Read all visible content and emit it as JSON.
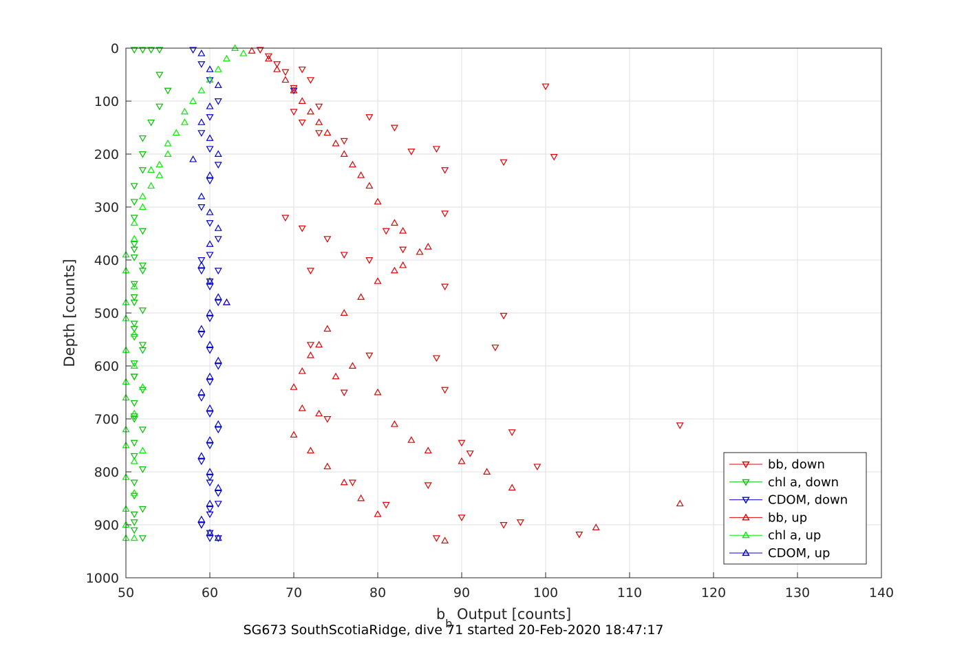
{
  "chart_data": {
    "type": "scatter",
    "xlabel_main": "b",
    "xlabel_sub": "b",
    "xlabel_rest": " Output [counts]",
    "ylabel": "Depth [counts]",
    "caption": "SG673 SouthScotiaRidge, dive 71 started 20-Feb-2020 18:47:17",
    "xlim": [
      50,
      140
    ],
    "ylim": [
      1000,
      0
    ],
    "y_reversed": true,
    "x_ticks": [
      "50",
      "60",
      "70",
      "80",
      "90",
      "100",
      "110",
      "120",
      "130",
      "140"
    ],
    "y_ticks": [
      "0",
      "100",
      "200",
      "300",
      "400",
      "500",
      "600",
      "700",
      "800",
      "900",
      "1000"
    ],
    "grid": true,
    "legend_position": "bottom-right",
    "series": [
      {
        "name": "bb, down",
        "color": "#e00000",
        "marker": "triangle-down",
        "x": [
          66,
          67,
          68,
          69,
          71,
          72,
          70,
          100,
          73,
          82,
          79,
          87,
          95,
          101,
          88,
          84,
          76,
          73,
          71,
          70,
          69,
          71,
          88,
          74,
          72,
          81,
          76,
          79,
          83,
          88,
          95,
          94,
          87,
          88,
          79,
          76,
          72,
          96,
          90,
          91,
          86,
          99,
          116,
          97,
          95,
          90,
          104,
          87,
          81,
          77,
          74
        ],
        "y": [
          3,
          15,
          30,
          45,
          40,
          60,
          75,
          72,
          110,
          150,
          130,
          190,
          215,
          205,
          230,
          195,
          175,
          160,
          140,
          120,
          320,
          340,
          312,
          360,
          420,
          345,
          390,
          400,
          380,
          450,
          505,
          565,
          585,
          645,
          580,
          650,
          560,
          725,
          745,
          765,
          825,
          790,
          712,
          895,
          900,
          886,
          918,
          925,
          862,
          820,
          700
        ]
      },
      {
        "name": "chl a, down",
        "color": "#00c000",
        "marker": "triangle-down",
        "x": [
          51,
          52,
          53,
          54,
          54,
          55,
          54,
          53,
          52,
          52,
          52,
          51,
          51,
          51,
          52,
          51,
          51,
          52,
          51,
          51,
          52,
          51,
          51,
          52,
          51,
          51,
          52,
          51,
          51,
          52,
          51,
          51,
          52,
          51,
          51,
          52,
          51,
          51,
          52,
          51,
          52,
          51,
          51,
          52,
          51,
          51,
          51
        ],
        "y": [
          3,
          3,
          3,
          3,
          50,
          80,
          110,
          140,
          170,
          200,
          230,
          260,
          290,
          320,
          345,
          370,
          395,
          420,
          445,
          470,
          495,
          520,
          545,
          570,
          595,
          620,
          645,
          670,
          695,
          720,
          745,
          770,
          795,
          820,
          845,
          870,
          895,
          910,
          925,
          380,
          410,
          480,
          530,
          560,
          620,
          700,
          880
        ]
      },
      {
        "name": "CDOM, down",
        "color": "#0000d0",
        "marker": "triangle-down",
        "x": [
          58,
          59,
          60,
          61,
          60,
          59,
          60,
          61,
          60,
          59,
          60,
          61,
          60,
          59,
          60,
          61,
          60,
          59,
          60,
          61,
          60,
          59,
          60,
          61,
          60,
          59,
          60,
          61,
          60,
          59,
          60,
          61,
          60,
          59,
          60,
          61,
          60,
          59,
          61,
          60,
          70
        ],
        "y": [
          3,
          30,
          60,
          100,
          130,
          160,
          190,
          220,
          250,
          300,
          330,
          360,
          390,
          420,
          450,
          480,
          510,
          540,
          570,
          600,
          630,
          660,
          690,
          720,
          750,
          780,
          810,
          840,
          870,
          900,
          925,
          925,
          915,
          900,
          880,
          860,
          820,
          400,
          420,
          440,
          80
        ]
      },
      {
        "name": "bb, up",
        "color": "#e00000",
        "marker": "triangle-up",
        "x": [
          65,
          67,
          68,
          69,
          70,
          71,
          72,
          73,
          74,
          75,
          76,
          77,
          78,
          79,
          80,
          82,
          83,
          86,
          85,
          83,
          82,
          80,
          78,
          76,
          74,
          73,
          72,
          71,
          70,
          80,
          82,
          84,
          86,
          90,
          93,
          96,
          116,
          106,
          88,
          80,
          78,
          76,
          74,
          72,
          70,
          62,
          71,
          73,
          75,
          77
        ],
        "y": [
          5,
          20,
          40,
          60,
          80,
          100,
          120,
          140,
          160,
          180,
          200,
          220,
          240,
          260,
          290,
          330,
          345,
          375,
          385,
          410,
          420,
          440,
          470,
          500,
          530,
          560,
          580,
          610,
          640,
          650,
          710,
          740,
          760,
          780,
          800,
          830,
          860,
          905,
          930,
          880,
          850,
          820,
          790,
          760,
          730,
          480,
          680,
          690,
          620,
          600
        ]
      },
      {
        "name": "chl a, up",
        "color": "#00ee00",
        "marker": "triangle-up",
        "x": [
          63,
          64,
          62,
          61,
          60,
          59,
          58,
          57,
          57,
          56,
          55,
          55,
          54,
          54,
          53,
          52,
          52,
          51,
          51,
          50,
          50,
          51,
          50,
          50,
          51,
          50,
          51,
          50,
          50,
          51,
          50,
          50,
          51,
          50,
          51,
          50,
          50,
          51,
          50,
          52,
          52,
          53
        ],
        "y": [
          0,
          10,
          20,
          40,
          60,
          80,
          100,
          120,
          140,
          160,
          180,
          200,
          220,
          240,
          260,
          280,
          300,
          330,
          360,
          390,
          420,
          450,
          480,
          510,
          540,
          570,
          600,
          630,
          660,
          690,
          720,
          750,
          780,
          810,
          840,
          870,
          900,
          925,
          925,
          640,
          760,
          230
        ]
      },
      {
        "name": "CDOM, up",
        "color": "#0000d0",
        "marker": "triangle-up",
        "x": [
          59,
          60,
          61,
          60,
          59,
          60,
          61,
          60,
          59,
          60,
          61,
          60,
          59,
          60,
          61,
          60,
          59,
          60,
          61,
          60,
          59,
          60,
          61,
          60,
          59,
          60,
          61,
          60,
          59,
          60,
          61,
          62,
          58
        ],
        "y": [
          10,
          40,
          70,
          110,
          140,
          170,
          200,
          240,
          280,
          310,
          340,
          370,
          410,
          440,
          470,
          500,
          530,
          560,
          590,
          620,
          650,
          680,
          710,
          740,
          770,
          800,
          830,
          860,
          890,
          915,
          925,
          480,
          210
        ]
      }
    ]
  }
}
